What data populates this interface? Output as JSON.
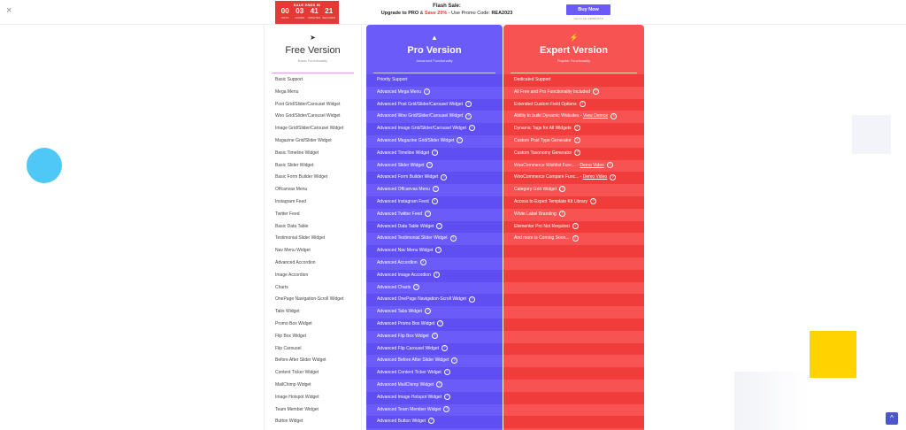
{
  "topbar": {
    "close_label": "×",
    "countdown": {
      "title": "SALE ENDS IN",
      "units": [
        {
          "value": "00",
          "label": "DAYS"
        },
        {
          "value": "03",
          "label": "HOURS"
        },
        {
          "value": "41",
          "label": "MINUTES"
        },
        {
          "value": "21",
          "label": "SECONDS"
        }
      ]
    },
    "flash": {
      "title": "Flash Sale:",
      "line_prefix": "Upgrade to PRO",
      "line_mid": " & ",
      "line_save": "Save 20%",
      "line_suffix": " - Use Promo Code: ",
      "code": "REA2023"
    },
    "buy_label": "Buy Now",
    "buy_note": "Use for ALL PRODUCTS"
  },
  "free": {
    "icon": "paper-plane-icon",
    "title": "Free Version",
    "subtitle": "Basic Functionality",
    "rows": [
      "Basic Support",
      "Mega Menu",
      "Post Grid/Slider/Carousel Widget",
      "Woo Grid/Slider/Carousel Widget",
      "Image Grid/Slider/Carousel Widget",
      "Magazine Grid/Slider Widget",
      "Basic Timeline Widget",
      "Basic Slider Widget",
      "Basic Form Builder Widget",
      "Offcanvas Menu",
      "Instagram Feed",
      "Twitter Feed",
      "Basic Data Table",
      "Testimonial Slider Widget",
      "Nav Menu Widget",
      "Advanced Accordion",
      "Image Accordion",
      "Charts",
      "OnePage Navigation-Scroll Widget",
      "Tabs Widget",
      "Promo Box Widget",
      "Flip Box Widget",
      "Flip Carousel",
      "Before After Slider Widget",
      "Content Ticker Widget",
      "MailChimp Widget",
      "Image Hotspot Widget",
      "Team Member Widget",
      "Button Widget"
    ]
  },
  "pro": {
    "icon": "rocket-icon",
    "title": "Pro Version",
    "subtitle": "Advanced Functionality",
    "rows": [
      "Priority Support",
      "Advanced Mega Menu",
      "Advanced Post Grid/Slider/Carousel Widget",
      "Advanced Woo Grid/Slider/Carousel Widget",
      "Advanced Image Grid/Slider/Carousel Widget",
      "Advanced Magazine Grid/Slider Widget",
      "Advanced Timeline Widget",
      "Advanced Slider Widget",
      "Advanced Form Builder Widget",
      "Advanced Offcanvas Menu",
      "Advanced Instagram Feed",
      "Advanced Twitter Feed",
      "Advanced Data Table Widget",
      "Advanced Testimonial Slider Widget",
      "Advanced Nav Menu Widget",
      "Advanced Accordion",
      "Advanced Image Accordion",
      "Advanced Charts",
      "Advanced OnePage Navigation-Scroll Widget",
      "Advanced Tabs Widget",
      "Advanced Promo Box Widget",
      "Advanced Flip Box Widget",
      "Advanced Flip Carousel Widget",
      "Advanced Before After Slider Widget",
      "Advanced Content Ticker Widget",
      "Advanced MailChimp Widget",
      "Advanced Image Hotspot Widget",
      "Advanced Team Member Widget",
      "Advanced Button Widget"
    ],
    "info_rows": [
      1,
      2,
      3,
      4,
      5,
      6,
      7,
      8,
      9,
      10,
      11,
      12,
      13,
      14,
      15,
      16,
      17,
      18,
      19,
      20,
      21,
      22,
      23,
      24,
      25,
      26,
      27,
      28
    ]
  },
  "expert": {
    "icon": "lightning-icon",
    "title": "Expert Version",
    "subtitle": "Popular Functionality",
    "rows": [
      {
        "text": "Dedicated Support"
      },
      {
        "text": "All Free and Pro Functionality Included",
        "info": true
      },
      {
        "text": "Extended Custom Field Options",
        "info": true
      },
      {
        "text": "Ability to build Dynamic Websites - ",
        "link": "View Demos",
        "info": true
      },
      {
        "text": "Dynamic Tags for All Widgets",
        "info": true
      },
      {
        "text": "Custom Post Type Generator",
        "info": true
      },
      {
        "text": "Custom Taxonomy Generator",
        "info": true
      },
      {
        "text": "WooCommerce Wishlist Func... - ",
        "link": "Demo Video",
        "info": true
      },
      {
        "text": "WooCommerce Compare Func... - ",
        "link": "Demo Video",
        "info": true
      },
      {
        "text": "Category Grid Widget",
        "info": true
      },
      {
        "text": "Access to Expert Template Kit Library",
        "info": true
      },
      {
        "text": "White Label Branding",
        "info": true
      },
      {
        "text": "Elementor Pro Not Required",
        "info": true
      },
      {
        "text": "And more is Coming Soon...",
        "info": true
      }
    ],
    "total_rows": 29
  },
  "scroll_top_label": "^"
}
